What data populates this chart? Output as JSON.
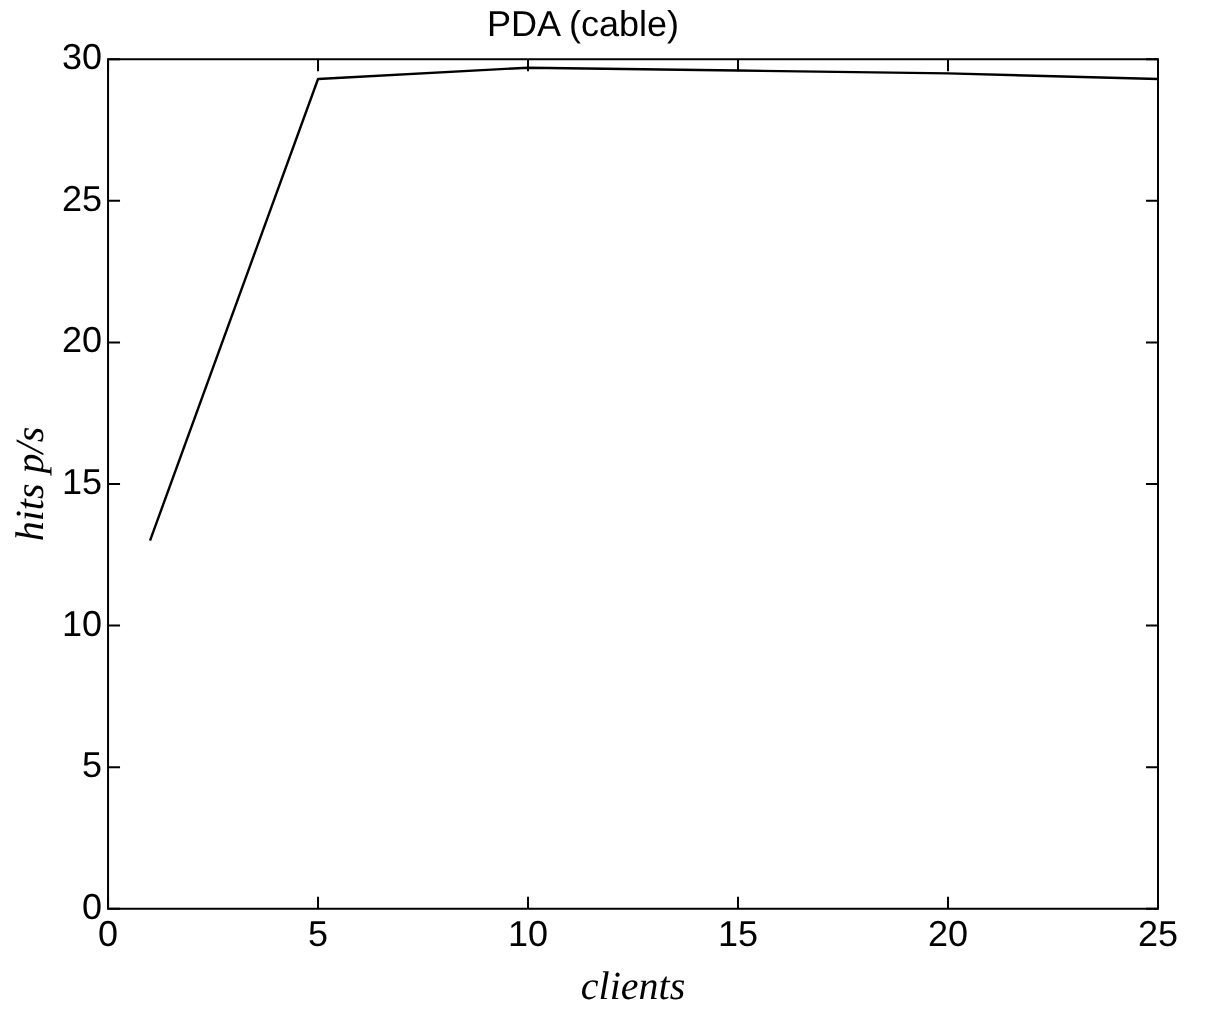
{
  "chart_data": {
    "type": "line",
    "title": "PDA (cable)",
    "xlabel": "clients",
    "ylabel": "hits p/s",
    "x": [
      1,
      5,
      10,
      15,
      20,
      25
    ],
    "series": [
      {
        "color": "#000000",
        "values": [
          13,
          29.3,
          29.7,
          29.6,
          29.5,
          29.3
        ]
      }
    ],
    "xlim": [
      0,
      25
    ],
    "xticks": [
      0,
      5,
      10,
      15,
      20,
      25
    ],
    "ylim": [
      0,
      30
    ],
    "yticks": [
      0,
      5,
      10,
      15,
      20,
      25,
      30
    ],
    "grid": false,
    "legend": false,
    "marker": "none",
    "line_style": "solid"
  }
}
